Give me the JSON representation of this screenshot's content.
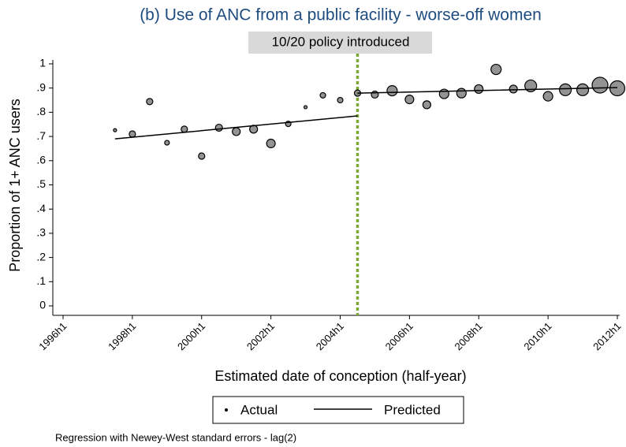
{
  "chart_data": {
    "type": "scatter",
    "title": "(b) Use of ANC from a public facility - worse-off women",
    "annotation": "10/20 policy introduced",
    "policy_x": 89,
    "x_label": "Estimated date of conception (half-year)",
    "y_label": "Proportion of 1+ ANC users",
    "note": "Regression with Newey-West standard errors - lag(2)",
    "xlim": [
      72,
      104
    ],
    "xticks": [
      {
        "value": 72,
        "label": "1996h1"
      },
      {
        "value": 76,
        "label": "1998h1"
      },
      {
        "value": 80,
        "label": "2000h1"
      },
      {
        "value": 84,
        "label": "2002h1"
      },
      {
        "value": 88,
        "label": "2004h1"
      },
      {
        "value": 92,
        "label": "2006h1"
      },
      {
        "value": 96,
        "label": "2008h1"
      },
      {
        "value": 100,
        "label": "2010h1"
      },
      {
        "value": 104,
        "label": "2012h1"
      }
    ],
    "ylim": [
      0,
      1
    ],
    "yticks": [
      0,
      {
        "value": 0.1,
        "label": ".1"
      },
      {
        "value": 0.2,
        "label": ".2"
      },
      {
        "value": 0.3,
        "label": ".3"
      },
      {
        "value": 0.4,
        "label": ".4"
      },
      {
        "value": 0.5,
        "label": ".5"
      },
      {
        "value": 0.6,
        "label": ".6"
      },
      {
        "value": 0.7,
        "label": ".7"
      },
      {
        "value": 0.8,
        "label": ".8"
      },
      {
        "value": 0.9,
        "label": ".9"
      },
      1
    ],
    "series": [
      {
        "name": "Actual",
        "color": "#808080",
        "x": [
          75,
          76,
          77,
          78,
          79,
          80,
          81,
          82,
          83,
          84,
          85,
          86,
          87,
          88,
          89,
          90,
          91,
          92,
          93,
          94,
          95,
          96,
          97,
          98,
          99,
          100,
          101,
          102,
          103,
          104
        ],
        "values": [
          0.726,
          0.71,
          0.844,
          0.674,
          0.73,
          0.619,
          0.736,
          0.72,
          0.73,
          0.671,
          0.752,
          0.821,
          0.87,
          0.85,
          0.879,
          0.873,
          0.889,
          0.853,
          0.831,
          0.876,
          0.879,
          0.896,
          0.977,
          0.896,
          0.909,
          0.866,
          0.893,
          0.893,
          0.912,
          0.899
        ],
        "sizes": [
          4,
          16,
          16,
          9,
          16,
          16,
          20,
          25,
          25,
          30,
          12,
          4,
          12,
          12,
          16,
          20,
          42,
          30,
          25,
          36,
          36,
          30,
          42,
          25,
          56,
          36,
          56,
          56,
          100,
          90
        ]
      },
      {
        "name": "Predicted",
        "color": "#000000",
        "x": [
          75,
          89,
          null,
          89,
          104
        ],
        "values": [
          0.69,
          0.785,
          null,
          0.879,
          0.902
        ]
      }
    ]
  }
}
